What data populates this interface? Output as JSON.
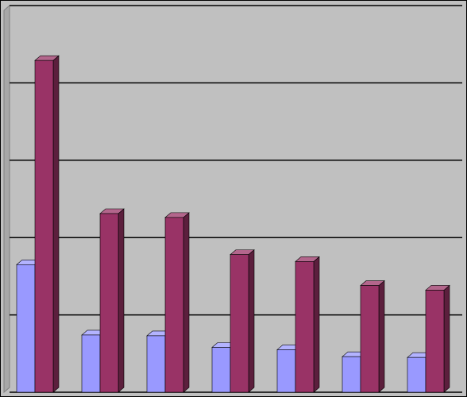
{
  "chart_data": {
    "type": "bar3d",
    "categories": [
      null,
      null,
      null,
      null,
      null,
      null,
      null
    ],
    "series": [
      {
        "color": "#9999ff",
        "values": [
          1.65,
          0.74,
          0.73,
          0.58,
          0.55,
          0.46,
          0.45
        ]
      },
      {
        "color": "#993366",
        "values": [
          4.29,
          2.31,
          2.26,
          1.78,
          1.69,
          1.38,
          1.32
        ]
      }
    ],
    "ylim": [
      0,
      5
    ],
    "yticks": [
      0,
      1,
      2,
      3,
      4,
      5
    ],
    "grid": true
  }
}
